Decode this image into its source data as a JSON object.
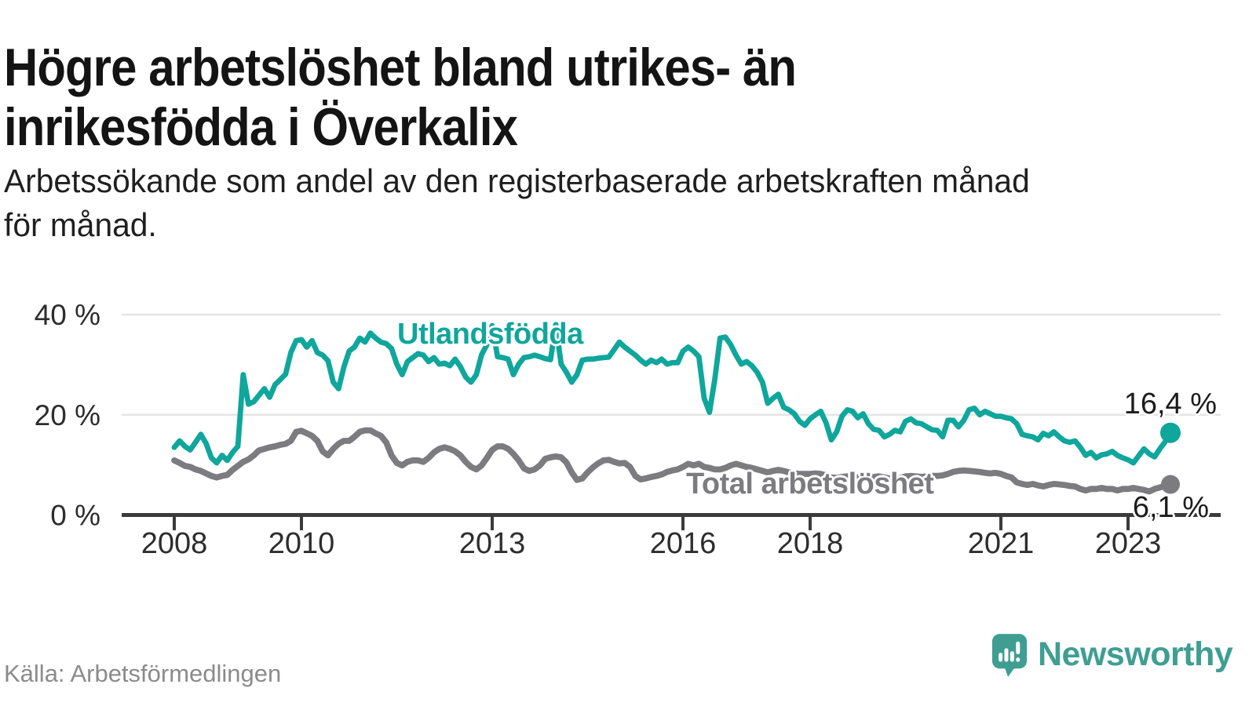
{
  "header": {
    "title_line1": "Högre arbetslöshet bland utrikes- än",
    "title_line2": "inrikesfödda i Överkalix",
    "subtitle_line1": "Arbetssökande som andel av den registerbaserade arbetskraften månad",
    "subtitle_line2": "för månad."
  },
  "chart_data": {
    "type": "line",
    "title": "Högre arbetslöshet bland utrikes- än inrikesfödda i Överkalix",
    "subtitle": "Arbetssökande som andel av den registerbaserade arbetskraften månad för månad.",
    "unit": "%",
    "x_start": "2008-01",
    "x_end": "2023-09",
    "x_tick_years": [
      2008,
      2010,
      2013,
      2016,
      2018,
      2021,
      2023
    ],
    "y_ticks": [
      {
        "value": 0,
        "label": "0 %"
      },
      {
        "value": 20,
        "label": "20 %"
      },
      {
        "value": 40,
        "label": "40 %"
      }
    ],
    "ylim": [
      0,
      40
    ],
    "grid": "horizontal",
    "legend_position": "inline-labels",
    "series": [
      {
        "name": "Utlandsfödda",
        "color": "#0fa69c",
        "end_label": "16,4 %",
        "end_value": 16.4,
        "values": [
          13.5,
          14.8,
          13.7,
          13.0,
          14.5,
          16.1,
          14.3,
          11.4,
          10.4,
          11.9,
          10.9,
          12.5,
          13.7,
          28.0,
          22.1,
          22.6,
          23.9,
          25.2,
          23.5,
          26.0,
          27.0,
          28.1,
          32.4,
          34.8,
          35.0,
          33.5,
          34.8,
          32.4,
          31.9,
          30.8,
          26.5,
          25.2,
          29.5,
          32.7,
          33.5,
          35.3,
          34.5,
          36.3,
          35.3,
          34.5,
          34.2,
          33.2,
          30.1,
          28.0,
          30.6,
          31.4,
          32.2,
          31.9,
          30.6,
          31.4,
          30.1,
          30.3,
          29.8,
          31.1,
          29.6,
          27.5,
          26.5,
          28.0,
          32.0,
          34.0,
          37.8,
          31.6,
          31.4,
          31.1,
          28.0,
          30.1,
          31.4,
          31.6,
          31.9,
          31.6,
          31.2,
          31.0,
          38.0,
          30.1,
          28.5,
          26.5,
          28.0,
          30.9,
          31.1,
          31.1,
          31.3,
          31.4,
          31.5,
          33.0,
          34.5,
          33.5,
          32.7,
          31.9,
          30.9,
          30.1,
          30.9,
          30.4,
          31.1,
          30.1,
          30.4,
          30.4,
          32.7,
          33.5,
          32.7,
          31.6,
          23.3,
          20.5,
          27.0,
          35.3,
          35.5,
          34.0,
          31.9,
          30.1,
          30.6,
          29.8,
          28.5,
          26.5,
          22.3,
          23.3,
          24.1,
          21.5,
          21.0,
          20.2,
          18.7,
          17.9,
          19.2,
          20.0,
          20.7,
          18.4,
          15.0,
          16.6,
          19.7,
          21.0,
          20.7,
          19.4,
          20.2,
          18.2,
          17.1,
          16.9,
          15.6,
          16.1,
          16.9,
          16.6,
          18.7,
          19.2,
          18.4,
          18.2,
          17.6,
          17.0,
          16.9,
          15.6,
          18.9,
          18.9,
          17.6,
          18.9,
          21.0,
          21.3,
          20.0,
          20.7,
          20.2,
          19.7,
          19.7,
          19.4,
          19.2,
          18.2,
          16.1,
          15.8,
          15.6,
          15.0,
          16.3,
          15.8,
          16.6,
          15.6,
          14.8,
          14.5,
          14.8,
          13.5,
          11.9,
          12.5,
          11.4,
          12.0,
          12.2,
          12.7,
          11.9,
          11.4,
          11.0,
          10.4,
          11.8,
          13.2,
          12.2,
          11.6,
          13.2,
          14.6,
          16.4
        ]
      },
      {
        "name": "Total arbetslöshet",
        "color": "#7c7c80",
        "end_label": "6,1 %",
        "end_value": 6.1,
        "values": [
          10.9,
          10.4,
          9.8,
          9.6,
          9.1,
          8.8,
          8.3,
          7.8,
          7.5,
          7.8,
          8.0,
          9.0,
          9.8,
          10.6,
          11.1,
          11.9,
          12.9,
          13.2,
          13.5,
          13.7,
          14.0,
          14.2,
          14.8,
          16.6,
          16.8,
          16.3,
          15.8,
          14.8,
          12.7,
          11.9,
          13.2,
          14.2,
          14.8,
          14.8,
          15.6,
          16.6,
          16.9,
          16.9,
          16.3,
          15.8,
          14.5,
          11.9,
          10.4,
          9.9,
          10.6,
          10.9,
          10.9,
          10.6,
          11.4,
          12.5,
          13.2,
          13.5,
          13.2,
          12.7,
          11.9,
          10.6,
          9.6,
          9.1,
          9.9,
          11.4,
          13.0,
          13.7,
          13.7,
          13.2,
          12.2,
          10.9,
          9.3,
          8.8,
          9.1,
          9.9,
          11.2,
          11.5,
          11.7,
          11.5,
          10.5,
          8.5,
          7.0,
          7.3,
          8.5,
          9.5,
          10.3,
          10.9,
          11.0,
          10.6,
          10.3,
          10.4,
          9.6,
          7.8,
          7.1,
          7.3,
          7.6,
          7.8,
          8.1,
          8.6,
          8.9,
          9.1,
          9.6,
          10.2,
          9.9,
          10.2,
          9.6,
          9.4,
          9.1,
          9.1,
          9.4,
          9.9,
          10.2,
          9.9,
          9.6,
          9.4,
          9.1,
          8.8,
          8.5,
          8.8,
          9.0,
          8.8,
          8.5,
          8.3,
          8.2,
          8.2,
          8.2,
          8.3,
          8.2,
          7.9,
          7.5,
          7.4,
          7.6,
          7.7,
          7.6,
          7.5,
          7.4,
          7.5,
          7.6,
          7.7,
          7.5,
          7.3,
          7.2,
          7.4,
          7.7,
          7.8,
          7.7,
          7.6,
          7.7,
          7.8,
          7.8,
          7.9,
          8.2,
          8.6,
          8.8,
          8.9,
          8.8,
          8.7,
          8.6,
          8.4,
          8.3,
          8.4,
          8.2,
          7.8,
          7.5,
          6.5,
          6.2,
          6.0,
          6.2,
          5.9,
          5.7,
          6.0,
          6.2,
          6.1,
          6.0,
          5.8,
          5.7,
          5.2,
          4.9,
          5.2,
          5.2,
          5.4,
          5.2,
          5.2,
          4.9,
          5.2,
          5.2,
          5.4,
          5.2,
          5.0,
          4.7,
          5.2,
          5.5,
          5.8,
          6.1
        ]
      }
    ]
  },
  "footer": {
    "source": "Källa: Arbetsförmedlingen",
    "brand_name": "Newsworthy",
    "brand_color": "#3f9e92"
  }
}
